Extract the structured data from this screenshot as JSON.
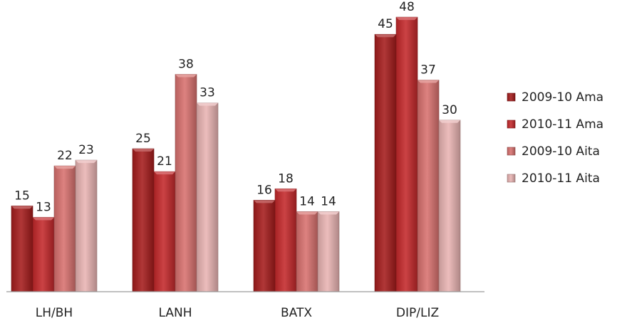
{
  "chart_data": {
    "type": "bar",
    "categories": [
      "LH/BH",
      "LANH",
      "BATX",
      "DIP/LIZ"
    ],
    "series": [
      {
        "name": "2009-10 Ama",
        "values": [
          15,
          25,
          16,
          45
        ],
        "color": "#a51c1c"
      },
      {
        "name": "2010-11 Ama",
        "values": [
          13,
          21,
          18,
          48
        ],
        "color": "#c4282a"
      },
      {
        "name": "2009-10 Aita",
        "values": [
          22,
          38,
          14,
          37
        ],
        "color": "#d8716f"
      },
      {
        "name": "2010-11 Aita",
        "values": [
          23,
          33,
          14,
          30
        ],
        "color": "#e9b4b3"
      }
    ],
    "ylim": [
      0,
      50
    ],
    "grid": false,
    "legend_position": "right",
    "data_labels": true
  }
}
